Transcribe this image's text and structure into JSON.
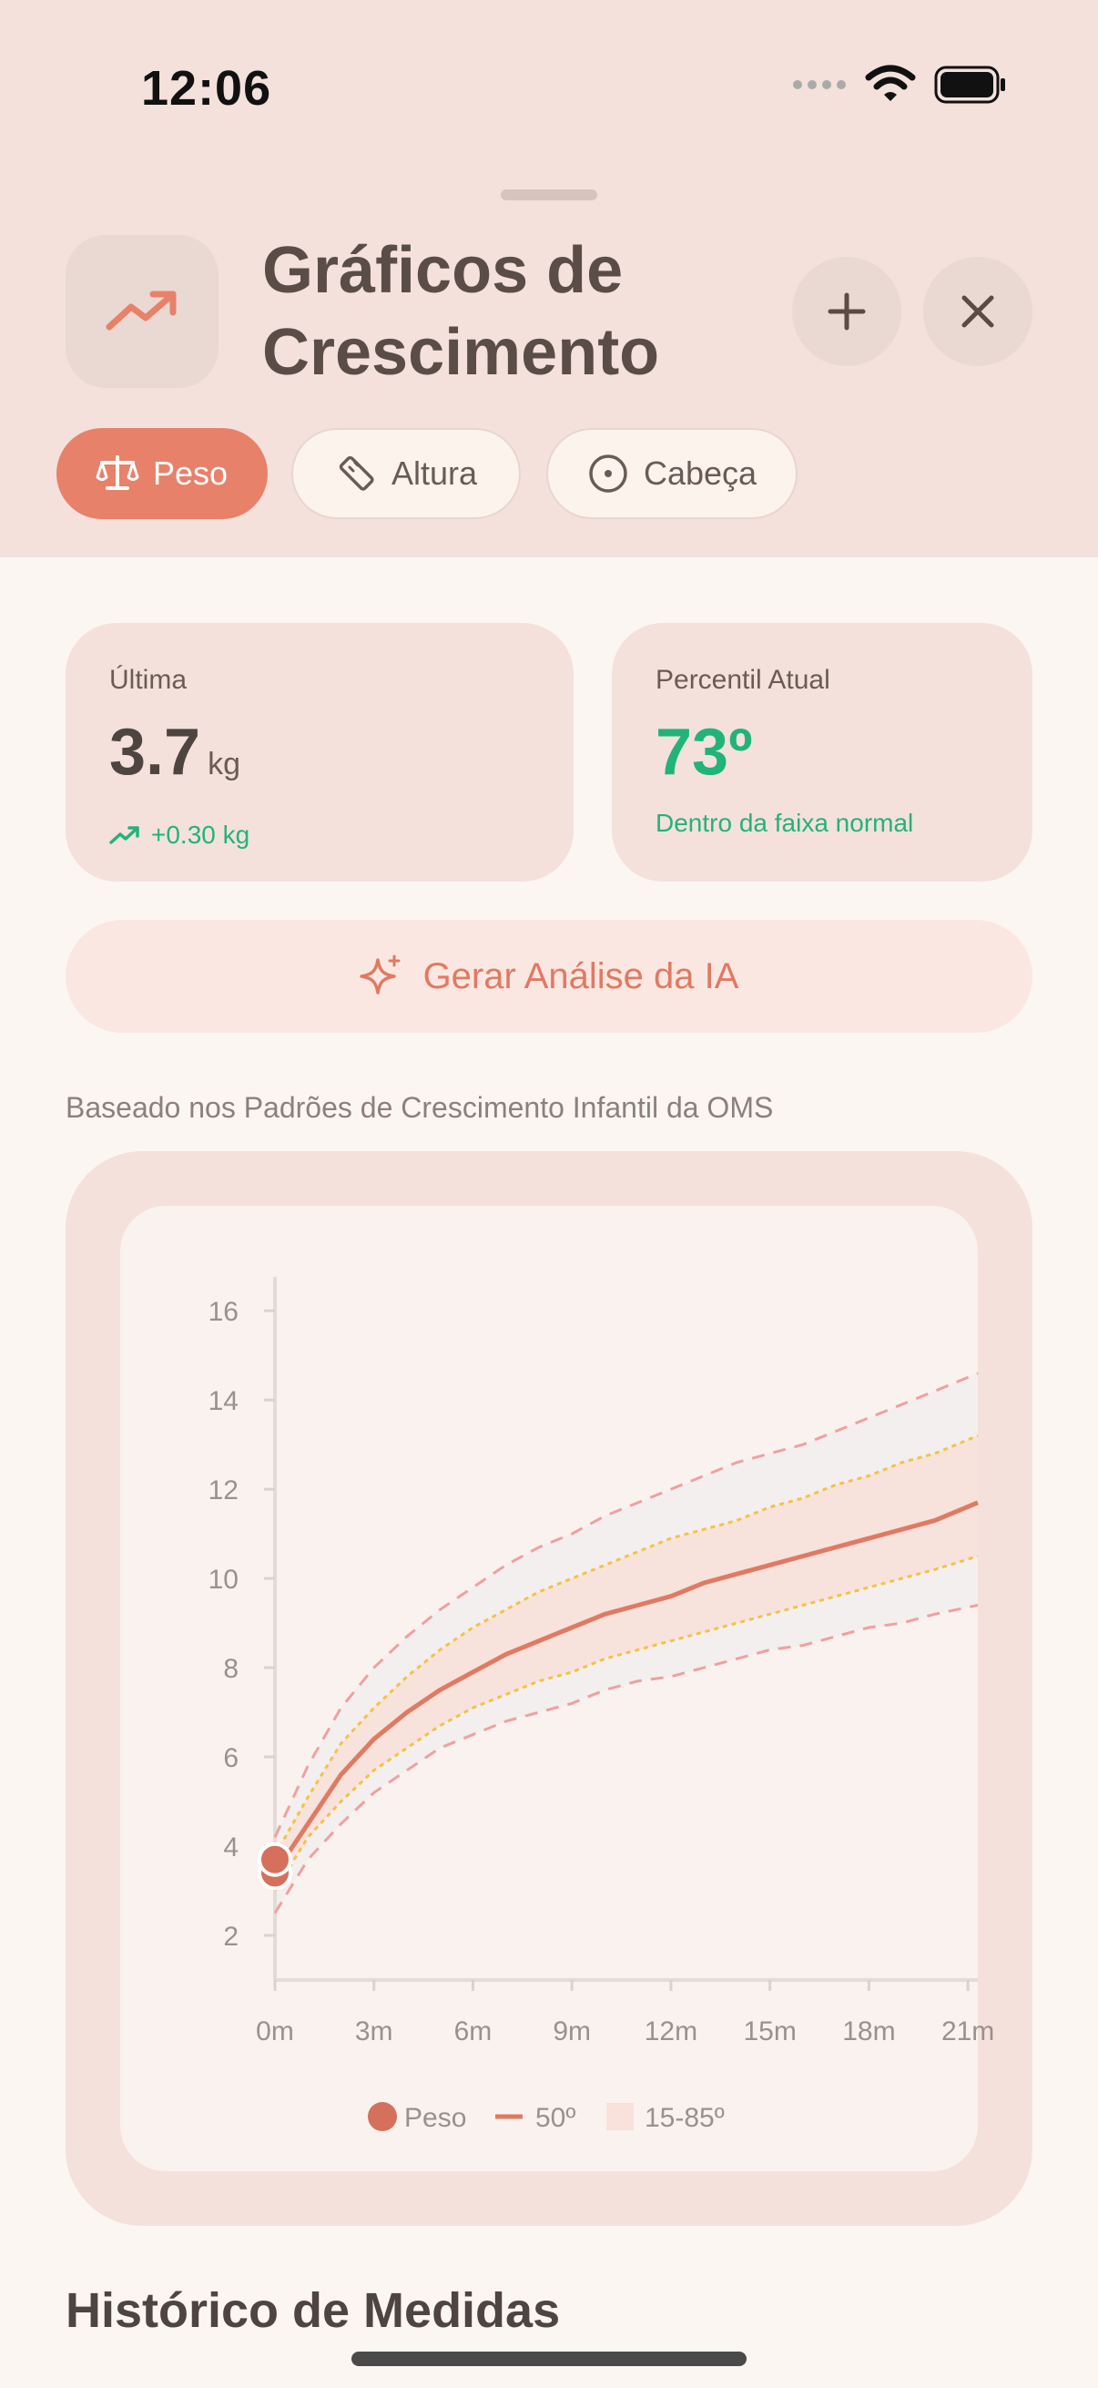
{
  "status": {
    "time": "12:06"
  },
  "header": {
    "title_line1": "Gráficos de",
    "title_line2": "Crescimento",
    "app_icon": "trend-up-icon",
    "add_icon": "plus-icon",
    "close_icon": "close-icon",
    "tabs": [
      {
        "label": "Peso",
        "icon": "scale-icon",
        "active": true
      },
      {
        "label": "Altura",
        "icon": "ruler-icon",
        "active": false
      },
      {
        "label": "Cabeça",
        "icon": "target-icon",
        "active": false
      }
    ]
  },
  "stats": {
    "latest": {
      "label": "Última",
      "value": "3.7",
      "unit": "kg",
      "change": "+0.30 kg"
    },
    "percentile": {
      "label": "Percentil Atual",
      "value": "73º",
      "status": "Dentro da faixa normal"
    }
  },
  "ai_button": {
    "label": "Gerar Análise da IA",
    "icon": "sparkle-icon"
  },
  "note": "Baseado nos Padrões de Crescimento Infantil da OMS",
  "colors": {
    "accent": "#e8816a",
    "green": "#22b37a",
    "median": "#e07a62",
    "p15_85": "#f5c243",
    "p3_97": "#f0a0a0"
  },
  "chart_data": {
    "type": "line",
    "ylim": [
      1,
      16.8
    ],
    "xlim": [
      0,
      21.3
    ],
    "yticks": [
      "2",
      "4",
      "6",
      "8",
      "10",
      "12",
      "14",
      "16"
    ],
    "xticks": [
      "0m",
      "3m",
      "6m",
      "9m",
      "12m",
      "15m",
      "18m",
      "21m"
    ],
    "legend": [
      {
        "label": "Peso",
        "shape": "dot"
      },
      {
        "label": "50º",
        "shape": "line"
      },
      {
        "label": "15-85º",
        "shape": "band"
      }
    ],
    "series": [
      {
        "name": "50º",
        "x": [
          0,
          1,
          2,
          3,
          4,
          5,
          6,
          7,
          8,
          9,
          10,
          11,
          12,
          13,
          14,
          15,
          16,
          17,
          18,
          19,
          20,
          21.3
        ],
        "values": [
          3.4,
          4.5,
          5.6,
          6.4,
          7.0,
          7.5,
          7.9,
          8.3,
          8.6,
          8.9,
          9.2,
          9.4,
          9.6,
          9.9,
          10.1,
          10.3,
          10.5,
          10.7,
          10.9,
          11.1,
          11.3,
          11.7
        ]
      },
      {
        "x": [
          0,
          1,
          2,
          3,
          4,
          5,
          6,
          7,
          8,
          9,
          10,
          11,
          12,
          13,
          14,
          15,
          16,
          17,
          18,
          19,
          20,
          21.3
        ],
        "values": [
          3.8,
          5.1,
          6.3,
          7.1,
          7.8,
          8.4,
          8.9,
          9.3,
          9.7,
          10.0,
          10.3,
          10.6,
          10.9,
          11.1,
          11.3,
          11.6,
          11.8,
          12.1,
          12.3,
          12.6,
          12.8,
          13.2
        ]
      },
      {
        "x": [
          0,
          1,
          2,
          3,
          4,
          5,
          6,
          7,
          8,
          9,
          10,
          11,
          12,
          13,
          14,
          15,
          16,
          17,
          18,
          19,
          20,
          21.3
        ],
        "values": [
          3.0,
          4.2,
          5.0,
          5.7,
          6.2,
          6.7,
          7.1,
          7.4,
          7.7,
          7.9,
          8.2,
          8.4,
          8.6,
          8.8,
          9.0,
          9.2,
          9.4,
          9.6,
          9.8,
          10.0,
          10.2,
          10.5
        ]
      },
      {
        "x": [
          0,
          1,
          2,
          3,
          4,
          5,
          6,
          7,
          8,
          9,
          10,
          11,
          12,
          13,
          14,
          15,
          16,
          17,
          18,
          19,
          20,
          21.3
        ],
        "values": [
          4.2,
          5.8,
          7.1,
          8.0,
          8.7,
          9.3,
          9.8,
          10.3,
          10.7,
          11.0,
          11.4,
          11.7,
          12.0,
          12.3,
          12.6,
          12.8,
          13.0,
          13.3,
          13.6,
          13.9,
          14.2,
          14.6
        ]
      },
      {
        "x": [
          0,
          1,
          2,
          3,
          4,
          5,
          6,
          7,
          8,
          9,
          10,
          11,
          12,
          13,
          14,
          15,
          16,
          17,
          18,
          19,
          20,
          21.3
        ],
        "values": [
          2.5,
          3.7,
          4.5,
          5.2,
          5.7,
          6.2,
          6.5,
          6.8,
          7.0,
          7.2,
          7.5,
          7.7,
          7.8,
          8.0,
          8.2,
          8.4,
          8.5,
          8.7,
          8.9,
          9.0,
          9.2,
          9.4
        ]
      }
    ],
    "points": [
      {
        "x": 0,
        "y": 3.4
      },
      {
        "x": 0,
        "y": 3.7
      }
    ]
  },
  "history": {
    "title": "Histórico de Medidas"
  }
}
